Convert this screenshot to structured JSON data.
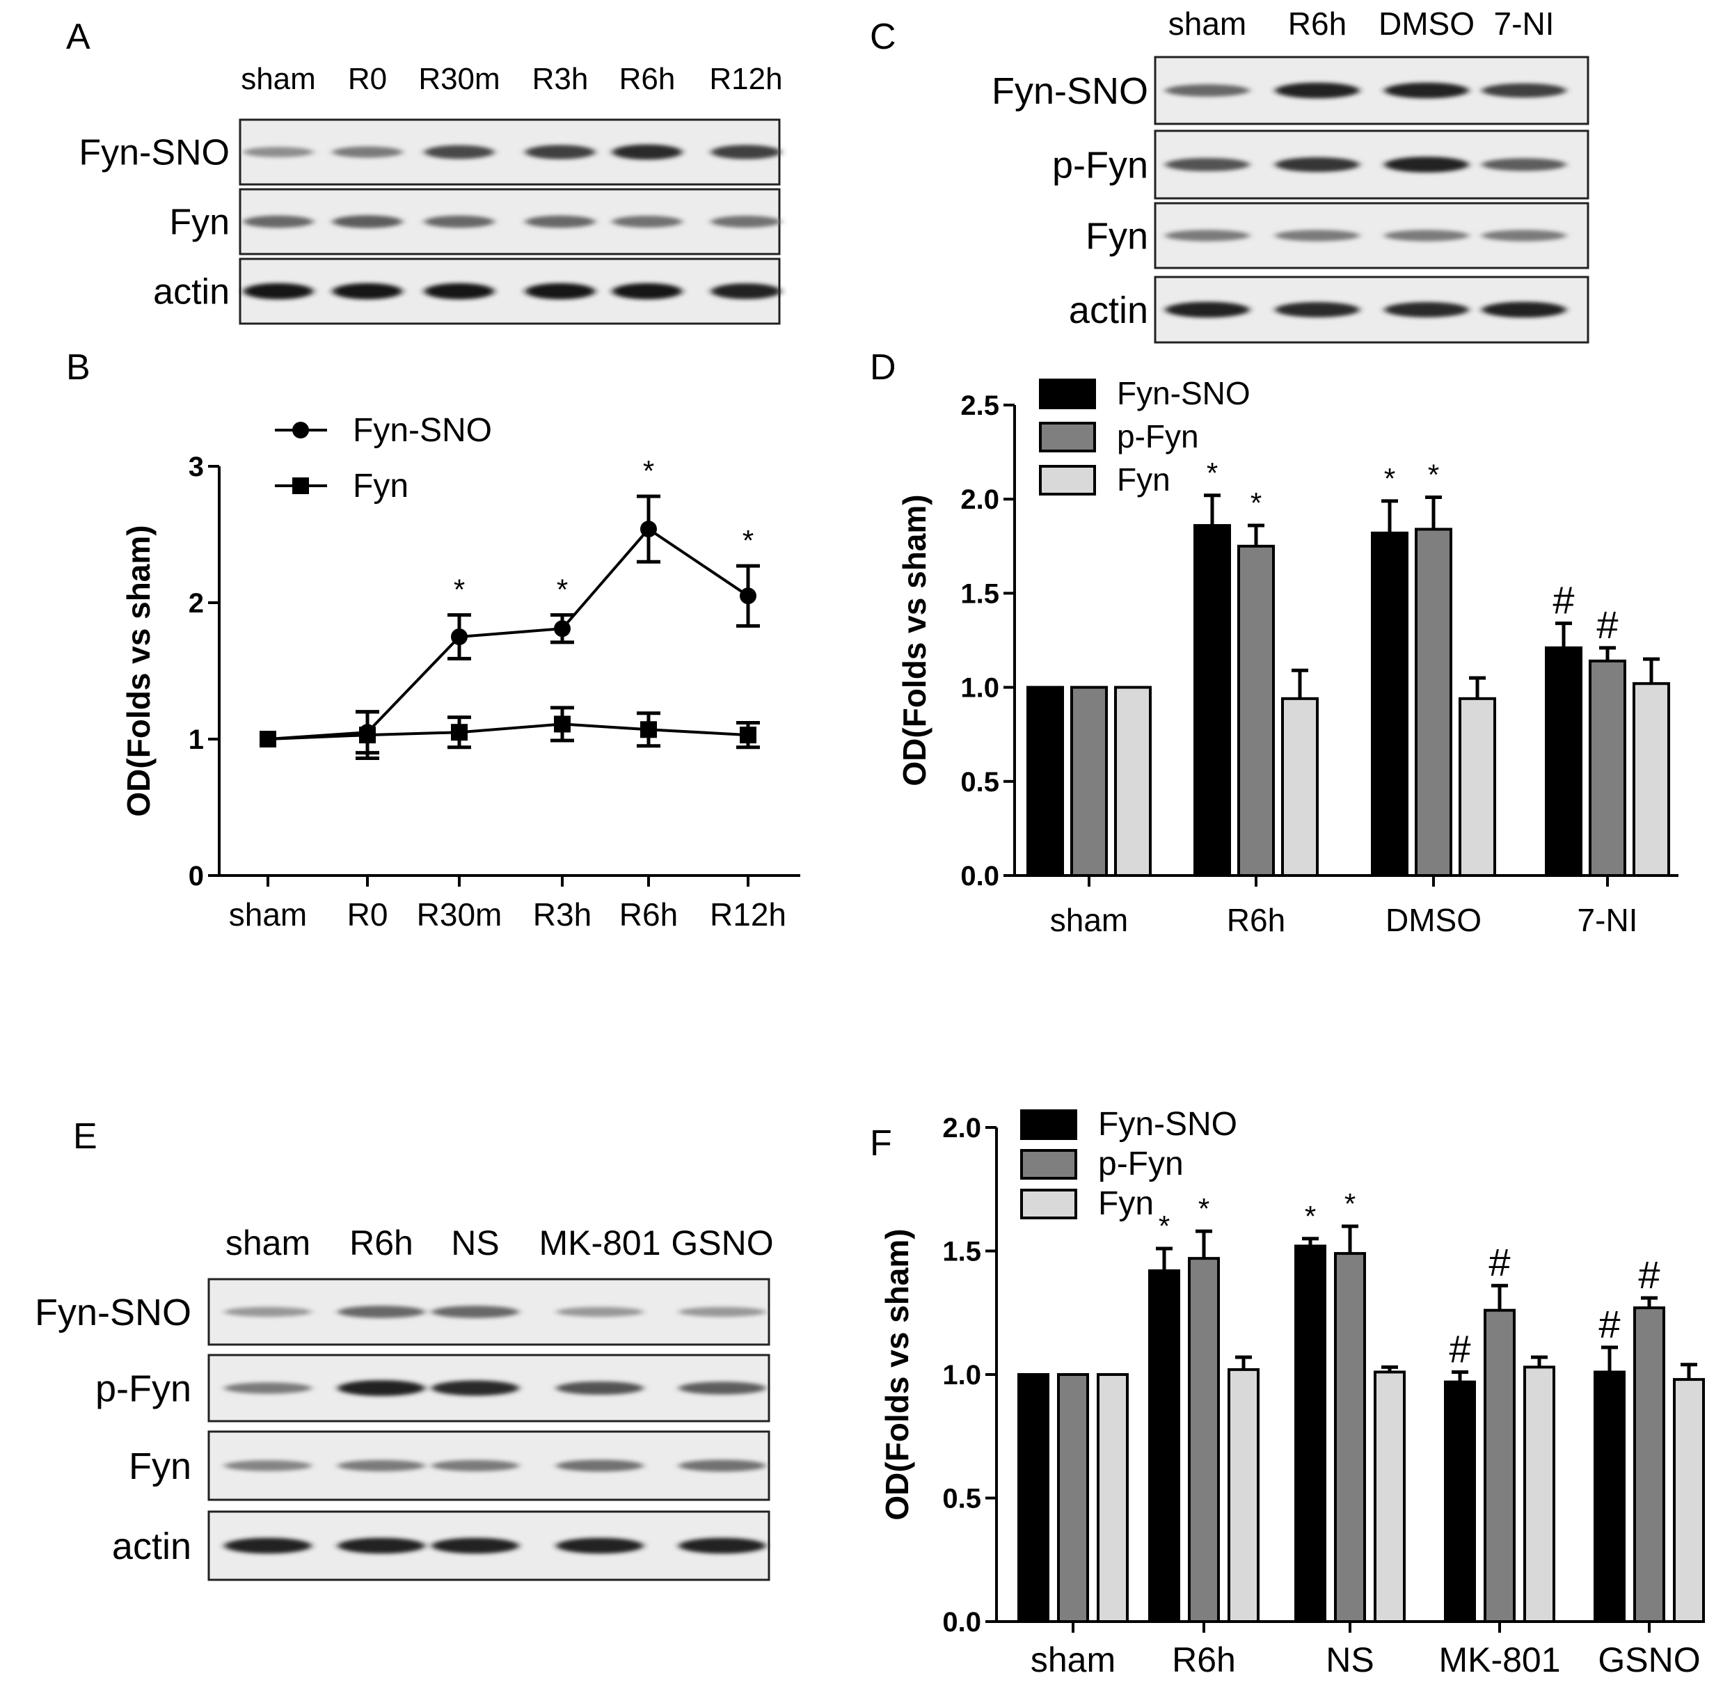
{
  "panels": {
    "A": "A",
    "B": "B",
    "C": "C",
    "D": "D",
    "E": "E",
    "F": "F"
  },
  "blots": [
    {
      "panel": "A",
      "lanes": [
        "sham",
        "R0",
        "R30m",
        "R3h",
        "R6h",
        "R12h"
      ],
      "rows": [
        {
          "label": "Fyn-SNO",
          "intensity": [
            0.35,
            0.45,
            0.7,
            0.75,
            0.85,
            0.75
          ]
        },
        {
          "label": "Fyn",
          "intensity": [
            0.55,
            0.6,
            0.55,
            0.55,
            0.5,
            0.5
          ]
        },
        {
          "label": "actin",
          "intensity": [
            0.95,
            0.95,
            0.95,
            0.95,
            0.95,
            0.9
          ]
        }
      ]
    },
    {
      "panel": "C",
      "lanes": [
        "sham",
        "R6h",
        "DMSO",
        "7-NI"
      ],
      "rows": [
        {
          "label": "Fyn-SNO",
          "intensity": [
            0.55,
            0.9,
            0.9,
            0.75
          ]
        },
        {
          "label": "p-Fyn",
          "intensity": [
            0.65,
            0.8,
            0.9,
            0.6
          ]
        },
        {
          "label": "Fyn",
          "intensity": [
            0.45,
            0.45,
            0.45,
            0.45
          ]
        },
        {
          "label": "actin",
          "intensity": [
            0.9,
            0.85,
            0.85,
            0.9
          ]
        }
      ]
    },
    {
      "panel": "E",
      "lanes": [
        "sham",
        "R6h",
        "NS",
        "MK-801",
        "GSNO"
      ],
      "rows": [
        {
          "label": "Fyn-SNO",
          "intensity": [
            0.3,
            0.55,
            0.55,
            0.3,
            0.3
          ]
        },
        {
          "label": "p-Fyn",
          "intensity": [
            0.45,
            0.9,
            0.85,
            0.65,
            0.6
          ]
        },
        {
          "label": "Fyn",
          "intensity": [
            0.4,
            0.45,
            0.45,
            0.5,
            0.5
          ]
        },
        {
          "label": "actin",
          "intensity": [
            0.9,
            0.9,
            0.9,
            0.9,
            0.9
          ]
        }
      ]
    }
  ],
  "chart_data": [
    {
      "panel": "B",
      "type": "line",
      "categories": [
        "sham",
        "R0",
        "R30m",
        "R3h",
        "R6h",
        "R12h"
      ],
      "ylabel": "OD(Folds vs sham)",
      "ylim": [
        0,
        3
      ],
      "yticks": [
        "0",
        "1",
        "2",
        "3"
      ],
      "legend_position": "top-left",
      "series": [
        {
          "name": "Fyn-SNO",
          "marker": "circle",
          "values": [
            1.0,
            1.05,
            1.75,
            1.81,
            2.54,
            2.05
          ],
          "errors": [
            0,
            0.15,
            0.16,
            0.1,
            0.24,
            0.22
          ],
          "annotations": [
            "",
            "",
            "*",
            "*",
            "*",
            "*"
          ]
        },
        {
          "name": "Fyn",
          "marker": "square",
          "values": [
            1.0,
            1.03,
            1.05,
            1.11,
            1.07,
            1.03
          ],
          "errors": [
            0,
            0.17,
            0.11,
            0.12,
            0.12,
            0.09
          ],
          "annotations": [
            "",
            "",
            "",
            "",
            "",
            ""
          ]
        }
      ]
    },
    {
      "panel": "D",
      "type": "bar",
      "categories": [
        "sham",
        "R6h",
        "DMSO",
        "7-NI"
      ],
      "ylabel": "OD(Folds vs sham)",
      "ylim": [
        0,
        2.5
      ],
      "yticks": [
        "0.0",
        "0.5",
        "1.0",
        "1.5",
        "2.0",
        "2.5"
      ],
      "legend_position": "top-left",
      "series": [
        {
          "name": "Fyn-SNO",
          "color": "#000000",
          "values": [
            1.0,
            1.86,
            1.82,
            1.21
          ],
          "errors": [
            0,
            0.16,
            0.17,
            0.13
          ],
          "annotations": [
            "",
            "*",
            "*",
            "#"
          ]
        },
        {
          "name": "p-Fyn",
          "color": "#7f7f7f",
          "values": [
            1.0,
            1.75,
            1.84,
            1.14
          ],
          "errors": [
            0,
            0.11,
            0.17,
            0.07
          ],
          "annotations": [
            "",
            "*",
            "*",
            "#"
          ]
        },
        {
          "name": "Fyn",
          "color": "#d9d9d9",
          "values": [
            1.0,
            0.94,
            0.94,
            1.02
          ],
          "errors": [
            0,
            0.15,
            0.11,
            0.13
          ],
          "annotations": [
            "",
            "",
            "",
            ""
          ]
        }
      ]
    },
    {
      "panel": "F",
      "type": "bar",
      "categories": [
        "sham",
        "R6h",
        "NS",
        "MK-801",
        "GSNO"
      ],
      "ylabel": "OD(Folds vs sham)",
      "ylim": [
        0,
        2.0
      ],
      "yticks": [
        "0.0",
        "0.5",
        "1.0",
        "1.5",
        "2.0"
      ],
      "legend_position": "top-left",
      "series": [
        {
          "name": "Fyn-SNO",
          "color": "#000000",
          "values": [
            1.0,
            1.42,
            1.52,
            0.97,
            1.01
          ],
          "errors": [
            0,
            0.09,
            0.03,
            0.04,
            0.1
          ],
          "annotations": [
            "",
            "*",
            "*",
            "#",
            "#"
          ]
        },
        {
          "name": "p-Fyn",
          "color": "#7f7f7f",
          "values": [
            1.0,
            1.47,
            1.49,
            1.26,
            1.27
          ],
          "errors": [
            0,
            0.11,
            0.11,
            0.1,
            0.04
          ],
          "annotations": [
            "",
            "*",
            "*",
            "#",
            "#"
          ]
        },
        {
          "name": "Fyn",
          "color": "#d9d9d9",
          "values": [
            1.0,
            1.02,
            1.01,
            1.03,
            0.98
          ],
          "errors": [
            0,
            0.05,
            0.02,
            0.04,
            0.06
          ],
          "annotations": [
            "",
            "",
            "",
            "",
            ""
          ]
        }
      ]
    }
  ]
}
